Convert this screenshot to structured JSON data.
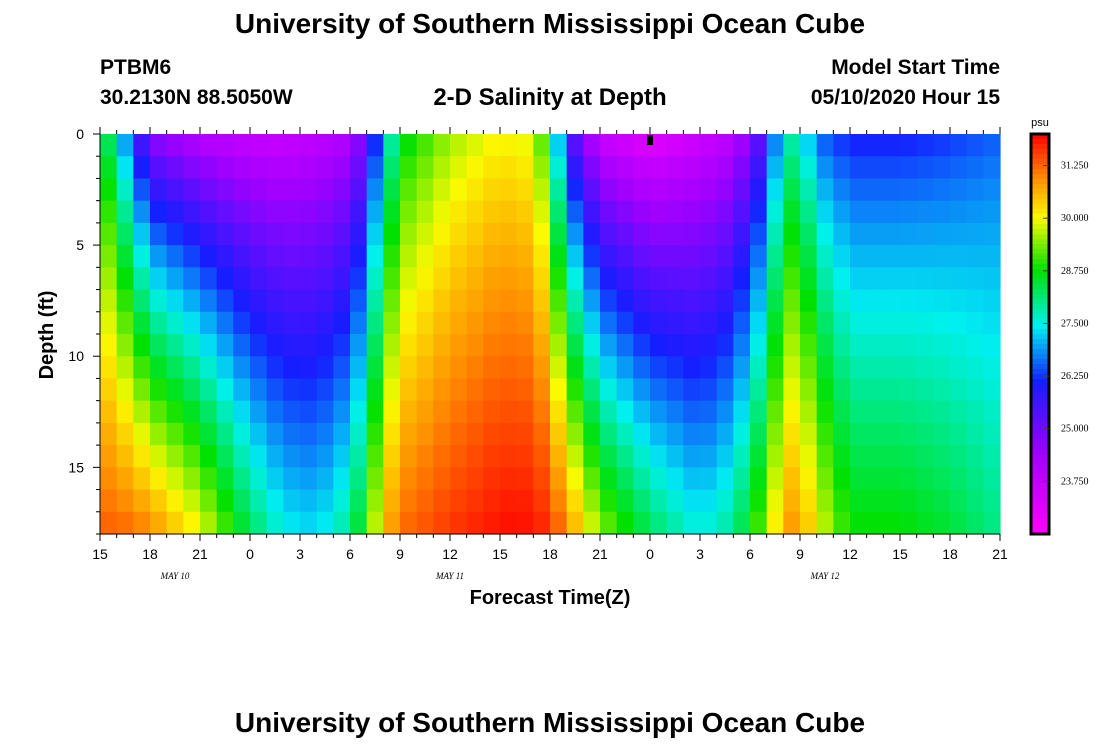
{
  "header": {
    "title": "University of Southern Mississippi Ocean Cube",
    "station_id": "PTBM6",
    "station_location": "30.2130N 88.5050W",
    "plot_title": "2-D Salinity at Depth",
    "model_start_label": "Model Start Time",
    "model_start_value": "05/10/2020 Hour 15"
  },
  "footer": {
    "title": "University of Southern Mississippi Ocean Cube"
  },
  "chart_data": {
    "type": "heatmap",
    "title": "2-D Salinity at Depth",
    "xlabel": "Forecast Time(Z)",
    "ylabel": "Depth (ft)",
    "x_range_hours": [
      0,
      54
    ],
    "y_range_ft": [
      0,
      18
    ],
    "x_ticks": [
      {
        "h": 0,
        "label": "15"
      },
      {
        "h": 3,
        "label": "18"
      },
      {
        "h": 6,
        "label": "21"
      },
      {
        "h": 9,
        "label": "0"
      },
      {
        "h": 12,
        "label": "3"
      },
      {
        "h": 15,
        "label": "6"
      },
      {
        "h": 18,
        "label": "9"
      },
      {
        "h": 21,
        "label": "12"
      },
      {
        "h": 24,
        "label": "15"
      },
      {
        "h": 27,
        "label": "18"
      },
      {
        "h": 30,
        "label": "21"
      },
      {
        "h": 33,
        "label": "0"
      },
      {
        "h": 36,
        "label": "3"
      },
      {
        "h": 39,
        "label": "6"
      },
      {
        "h": 42,
        "label": "9"
      },
      {
        "h": 45,
        "label": "12"
      },
      {
        "h": 48,
        "label": "15"
      },
      {
        "h": 51,
        "label": "18"
      },
      {
        "h": 54,
        "label": "21"
      }
    ],
    "y_ticks": [
      {
        "d": 0,
        "label": "0"
      },
      {
        "d": 5,
        "label": "5"
      },
      {
        "d": 10,
        "label": "10"
      },
      {
        "d": 15,
        "label": "15"
      }
    ],
    "date_labels": [
      {
        "h": 4.5,
        "label": "MAY 10"
      },
      {
        "h": 21,
        "label": "MAY 11"
      },
      {
        "h": 43.5,
        "label": "MAY 12"
      }
    ],
    "current_time_hour": 33,
    "colorbar": {
      "unit": "psu",
      "min": 22.5,
      "max": 32.0,
      "labels": [
        "31.250",
        "30.000",
        "28.750",
        "27.500",
        "26.250",
        "25.000",
        "23.750"
      ],
      "label_values": [
        31.25,
        30.0,
        28.75,
        27.5,
        26.25,
        25.0,
        23.75
      ]
    },
    "grid": {
      "cols": 54,
      "rows": 18,
      "col_step_hours": 1,
      "row_step_ft": 1,
      "profiles": [
        {
          "h": 0,
          "surface": 28.8,
          "bottom": 31.3
        },
        {
          "h": 1,
          "surface": 27.5,
          "bottom": 31.3
        },
        {
          "h": 2,
          "surface": 26.0,
          "bottom": 31.2
        },
        {
          "h": 3,
          "surface": 24.5,
          "bottom": 31.0
        },
        {
          "h": 6,
          "surface": 23.8,
          "bottom": 30.0
        },
        {
          "h": 9,
          "surface": 23.5,
          "bottom": 28.3
        },
        {
          "h": 11,
          "surface": 23.5,
          "bottom": 27.5
        },
        {
          "h": 13,
          "surface": 23.7,
          "bottom": 27.3
        },
        {
          "h": 15,
          "surface": 24.0,
          "bottom": 28.0
        },
        {
          "h": 16,
          "surface": 25.0,
          "bottom": 29.0
        },
        {
          "h": 17,
          "surface": 27.0,
          "bottom": 30.5
        },
        {
          "h": 18,
          "surface": 28.5,
          "bottom": 31.2
        },
        {
          "h": 21,
          "surface": 29.5,
          "bottom": 31.6
        },
        {
          "h": 24,
          "surface": 30.0,
          "bottom": 31.9
        },
        {
          "h": 26,
          "surface": 29.8,
          "bottom": 31.9
        },
        {
          "h": 27,
          "surface": 28.5,
          "bottom": 31.6
        },
        {
          "h": 28,
          "surface": 25.5,
          "bottom": 31.0
        },
        {
          "h": 30,
          "surface": 23.5,
          "bottom": 29.5
        },
        {
          "h": 33,
          "surface": 22.9,
          "bottom": 28.3
        },
        {
          "h": 36,
          "surface": 23.4,
          "bottom": 27.5
        },
        {
          "h": 38,
          "surface": 23.8,
          "bottom": 28.0
        },
        {
          "h": 40,
          "surface": 25.5,
          "bottom": 29.5
        },
        {
          "h": 41,
          "surface": 27.7,
          "bottom": 30.8
        },
        {
          "h": 42,
          "surface": 27.7,
          "bottom": 30.9
        },
        {
          "h": 43,
          "surface": 26.5,
          "bottom": 30.0
        },
        {
          "h": 45,
          "surface": 26.0,
          "bottom": 28.8
        },
        {
          "h": 48,
          "surface": 26.0,
          "bottom": 28.8
        },
        {
          "h": 51,
          "surface": 26.2,
          "bottom": 28.5
        },
        {
          "h": 54,
          "surface": 26.5,
          "bottom": 28.0
        }
      ]
    }
  }
}
